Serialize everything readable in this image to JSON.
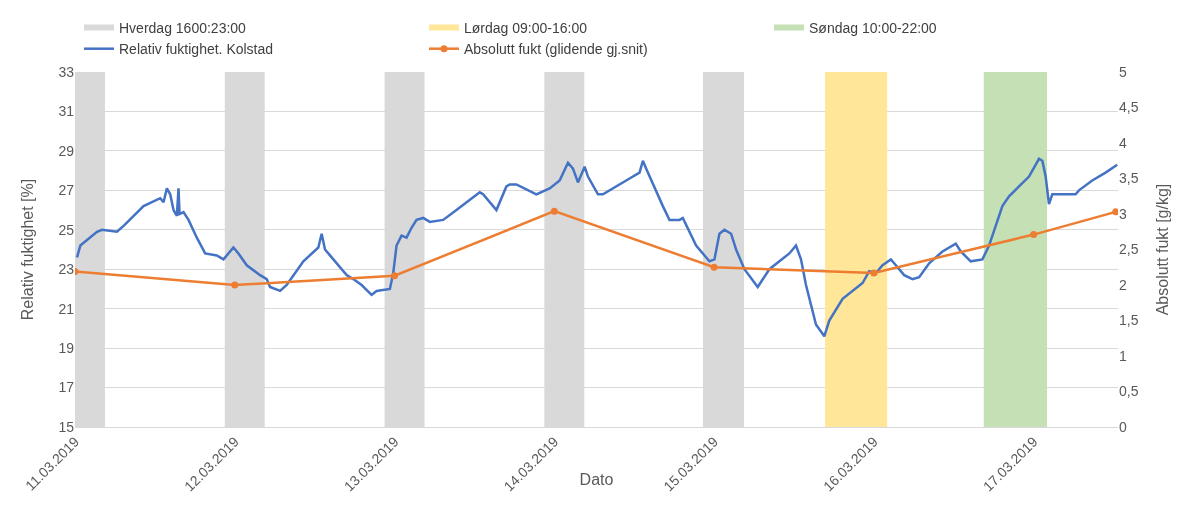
{
  "chart_data": {
    "type": "line",
    "xlabel": "Dato",
    "ylabel": "Relativ fuktighet [%]",
    "y2label": "Absolutt fukt [g/kg]",
    "xlim": [
      "2019-03-11",
      "2019-03-17T12:40"
    ],
    "xticks": [
      {
        "value": "2019-03-11",
        "label": "11.03.2019"
      },
      {
        "value": "2019-03-12",
        "label": "12.03.2019"
      },
      {
        "value": "2019-03-13",
        "label": "13.03.2019"
      },
      {
        "value": "2019-03-14",
        "label": "14.03.2019"
      },
      {
        "value": "2019-03-15",
        "label": "15.03.2019"
      },
      {
        "value": "2019-03-16",
        "label": "16.03.2019"
      },
      {
        "value": "2019-03-17",
        "label": "17.03.2019"
      }
    ],
    "ylim": [
      15,
      33
    ],
    "yticks": [
      15,
      17,
      19,
      21,
      23,
      25,
      27,
      29,
      31,
      33
    ],
    "y2lim": [
      0,
      5
    ],
    "y2ticks": [
      0,
      {
        "value": 0.5,
        "label": "0,5"
      },
      1,
      {
        "value": 1.5,
        "label": "1,5"
      },
      2,
      {
        "value": 2.5,
        "label": "2,5"
      },
      3,
      {
        "value": 3.5,
        "label": "3,5"
      },
      4,
      {
        "value": 4.5,
        "label": "4,5"
      },
      5
    ],
    "grid": "y",
    "legend": "top",
    "bands": [
      {
        "axis": "x",
        "from": "2019-03-11T00:00",
        "to": "2019-03-11T04:30",
        "label": "Hverdag 1600:23:00",
        "color": "#d9d9d9"
      },
      {
        "axis": "x",
        "from": "2019-03-11T22:30",
        "to": "2019-03-12T04:30",
        "color": "#d9d9d9"
      },
      {
        "axis": "x",
        "from": "2019-03-12T22:30",
        "to": "2019-03-13T04:30",
        "color": "#d9d9d9"
      },
      {
        "axis": "x",
        "from": "2019-03-13T22:30",
        "to": "2019-03-14T04:30",
        "color": "#d9d9d9"
      },
      {
        "axis": "x",
        "from": "2019-03-14T22:20",
        "to": "2019-03-15T04:30",
        "color": "#d9d9d9"
      },
      {
        "axis": "x",
        "from": "2019-03-15T16:40",
        "to": "2019-03-16T02:00",
        "label": "Lørdag 09:00-16:00",
        "color": "#ffe699"
      },
      {
        "axis": "x",
        "from": "2019-03-16T16:30",
        "to": "2019-03-17T02:00",
        "label": "Søndag 10:00-22:00",
        "color": "#c5e0b4"
      }
    ],
    "series": [
      {
        "name": "Relativ fuktighet. Kolstad",
        "color": "#4472c4",
        "marker": "none",
        "x": [
          "2019-03-11T00:18",
          "2019-03-11T00:48",
          "2019-03-11T03:18",
          "2019-03-11T04:03",
          "2019-03-11T06:18",
          "2019-03-11T07:18",
          "2019-03-11T10:18",
          "2019-03-11T12:48",
          "2019-03-11T13:18",
          "2019-03-11T13:48",
          "2019-03-11T14:18",
          "2019-03-11T14:48",
          "2019-03-11T15:18",
          "2019-03-11T15:33",
          "2019-03-11T15:42",
          "2019-03-11T16:18",
          "2019-03-11T17:03",
          "2019-03-11T18:18",
          "2019-03-11T19:33",
          "2019-03-11T21:18",
          "2019-03-11T22:18",
          "2019-03-11T23:48",
          "2019-03-12T00:33",
          "2019-03-12T01:48",
          "2019-03-12T03:48",
          "2019-03-12T04:48",
          "2019-03-12T05:18",
          "2019-03-12T06:48",
          "2019-03-12T07:48",
          "2019-03-12T10:18",
          "2019-03-12T12:33",
          "2019-03-12T13:03",
          "2019-03-12T13:33",
          "2019-03-12T14:18",
          "2019-03-12T16:48",
          "2019-03-12T17:48",
          "2019-03-12T19:03",
          "2019-03-12T20:33",
          "2019-03-12T21:18",
          "2019-03-12T23:18",
          "2019-03-12T23:48",
          "2019-03-13T00:18",
          "2019-03-13T01:03",
          "2019-03-13T01:48",
          "2019-03-13T02:33",
          "2019-03-13T03:18",
          "2019-03-13T04:18",
          "2019-03-13T05:18",
          "2019-03-13T07:18",
          "2019-03-13T09:18",
          "2019-03-13T12:48",
          "2019-03-13T13:18",
          "2019-03-13T15:18",
          "2019-03-13T16:48",
          "2019-03-13T17:18",
          "2019-03-13T18:18",
          "2019-03-13T21:18",
          "2019-03-13T23:18",
          "2019-03-14T00:48",
          "2019-03-14T02:03",
          "2019-03-14T02:48",
          "2019-03-14T03:33",
          "2019-03-14T04:33",
          "2019-03-14T05:03",
          "2019-03-14T06:33",
          "2019-03-14T07:18",
          "2019-03-14T11:18",
          "2019-03-14T12:48",
          "2019-03-14T13:18",
          "2019-03-14T13:48",
          "2019-03-14T16:18",
          "2019-03-14T17:18",
          "2019-03-14T18:48",
          "2019-03-14T19:18",
          "2019-03-14T21:18",
          "2019-03-14T23:18",
          "2019-03-15T00:03",
          "2019-03-15T00:48",
          "2019-03-15T01:33",
          "2019-03-15T02:33",
          "2019-03-15T03:18",
          "2019-03-15T04:33",
          "2019-03-15T06:33",
          "2019-03-15T08:18",
          "2019-03-15T11:18",
          "2019-03-15T12:18",
          "2019-03-15T13:03",
          "2019-03-15T13:48",
          "2019-03-15T15:18",
          "2019-03-15T16:33",
          "2019-03-15T17:18",
          "2019-03-15T19:18",
          "2019-03-15T22:18",
          "2019-03-15T23:18",
          "2019-03-16T00:18",
          "2019-03-16T01:18",
          "2019-03-16T02:33",
          "2019-03-16T03:18",
          "2019-03-16T04:33",
          "2019-03-16T05:48",
          "2019-03-16T06:48",
          "2019-03-16T08:18",
          "2019-03-16T10:18",
          "2019-03-16T12:18",
          "2019-03-16T13:03",
          "2019-03-16T14:33",
          "2019-03-16T16:18",
          "2019-03-16T17:18",
          "2019-03-16T19:18",
          "2019-03-16T20:18",
          "2019-03-16T21:48",
          "2019-03-16T23:18",
          "2019-03-17T00:48",
          "2019-03-17T01:18",
          "2019-03-17T01:48",
          "2019-03-17T02:18",
          "2019-03-17T02:48",
          "2019-03-17T04:48",
          "2019-03-17T06:18",
          "2019-03-17T06:48",
          "2019-03-17T08:48",
          "2019-03-17T10:48",
          "2019-03-17T12:33"
        ],
        "values": [
          23.6,
          24.2,
          24.9,
          25.0,
          24.9,
          25.2,
          26.2,
          26.6,
          26.4,
          27.1,
          26.8,
          26.0,
          25.7,
          27.1,
          25.8,
          25.9,
          25.5,
          24.6,
          23.8,
          23.7,
          23.5,
          24.1,
          23.8,
          23.2,
          22.7,
          22.5,
          22.1,
          21.9,
          22.2,
          23.4,
          24.1,
          24.8,
          24.0,
          23.7,
          22.7,
          22.5,
          22.2,
          21.7,
          21.9,
          22.0,
          22.8,
          24.2,
          24.7,
          24.6,
          25.1,
          25.5,
          25.6,
          25.4,
          25.5,
          26.0,
          26.9,
          26.8,
          26.0,
          27.2,
          27.3,
          27.3,
          26.8,
          27.1,
          27.5,
          28.4,
          28.1,
          27.4,
          28.2,
          27.7,
          26.8,
          26.8,
          27.6,
          27.9,
          28.5,
          28.1,
          26.2,
          25.5,
          25.5,
          25.6,
          24.2,
          23.4,
          23.5,
          24.8,
          25.0,
          24.8,
          24.0,
          23.0,
          22.1,
          23.0,
          23.8,
          24.2,
          23.5,
          22.2,
          20.2,
          19.6,
          20.4,
          21.5,
          22.3,
          22.9,
          22.8,
          23.2,
          23.5,
          23.2,
          22.7,
          22.5,
          22.6,
          23.3,
          23.9,
          24.3,
          23.9,
          23.4,
          23.5,
          24.2,
          26.2,
          26.7,
          27.2,
          27.7,
          28.6,
          28.5,
          27.7,
          26.3,
          26.8,
          26.8,
          26.8,
          27.0,
          27.5,
          27.9,
          28.3
        ]
      },
      {
        "name": "Absolutt fukt (glidende gj.snit)",
        "color": "#ed7d31",
        "marker": "circle",
        "axis": "y2",
        "x": [
          "2019-03-11T00:00",
          "2019-03-12T00:00",
          "2019-03-13T00:00",
          "2019-03-14T00:00",
          "2019-03-15T00:00",
          "2019-03-16T00:00",
          "2019-03-17T00:00",
          "2019-03-17T12:20"
        ],
        "values": [
          2.19,
          2.0,
          2.13,
          3.04,
          2.25,
          2.17,
          2.71,
          3.03
        ]
      }
    ]
  }
}
